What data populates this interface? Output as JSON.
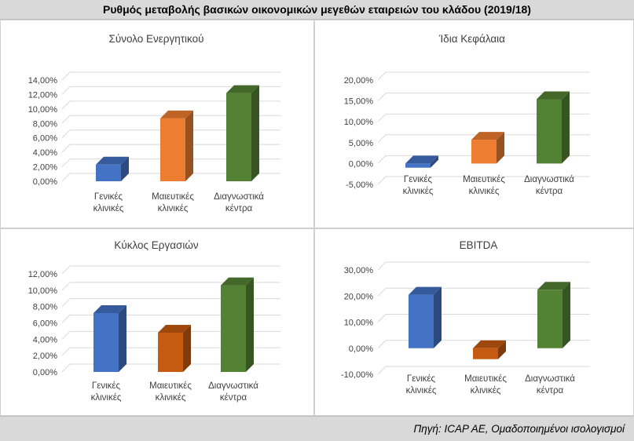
{
  "header": {
    "title": "Ρυθμός μεταβολής βασικών οικονομικών μεγεθών εταιρειών του κλάδου (2019/18)"
  },
  "footer": {
    "source": "Πηγή: ICAP AE, Ομαδοποιημένοι ισολογισμοί"
  },
  "chart_data": [
    {
      "type": "bar",
      "title": "Σύνολο Ενεργητικού",
      "categories": [
        "Γενικές κλινικές",
        "Μαιευτικές κλινικές",
        "Διαγνωστικά κέντρα"
      ],
      "values": [
        2.3,
        8.7,
        12.2
      ],
      "ylim": [
        0,
        14
      ],
      "ytick_step": 2,
      "yticks": [
        "0,00%",
        "2,00%",
        "4,00%",
        "6,00%",
        "8,00%",
        "10,00%",
        "12,00%",
        "14,00%"
      ],
      "colors": [
        "#4472c4",
        "#ed7d31",
        "#548235"
      ]
    },
    {
      "type": "bar",
      "title": "Ίδια Κεφάλαια",
      "categories": [
        "Γενικές κλινικές",
        "Μαιευτικές κλινικές",
        "Διαγνωστικά κέντρα"
      ],
      "values": [
        -1.0,
        5.7,
        15.4
      ],
      "ylim": [
        -5,
        20
      ],
      "ytick_step": 5,
      "yticks": [
        "-5,00%",
        "0,00%",
        "5,00%",
        "10,00%",
        "15,00%",
        "20,00%"
      ],
      "colors": [
        "#4472c4",
        "#ed7d31",
        "#548235"
      ]
    },
    {
      "type": "bar",
      "title": "Κύκλος Εργασιών",
      "categories": [
        "Γενικές κλινικές",
        "Μαιευτικές κλινικές",
        "Διαγνωστικά κέντρα"
      ],
      "values": [
        7.2,
        4.8,
        10.6
      ],
      "ylim": [
        0,
        12
      ],
      "ytick_step": 2,
      "yticks": [
        "0,00%",
        "2,00%",
        "4,00%",
        "6,00%",
        "8,00%",
        "10,00%",
        "12,00%"
      ],
      "colors": [
        "#4472c4",
        "#c55a11",
        "#548235"
      ]
    },
    {
      "type": "bar",
      "title": "EBITDA",
      "categories": [
        "Γενικές κλινικές",
        "Μαιευτικές κλινικές",
        "Διαγνωστικά κέντρα"
      ],
      "values": [
        20.5,
        -4.2,
        22.4
      ],
      "ylim": [
        -10,
        30
      ],
      "ytick_step": 10,
      "yticks": [
        "-10,00%",
        "0,00%",
        "10,00%",
        "20,00%",
        "30,00%"
      ],
      "colors": [
        "#4472c4",
        "#c55a11",
        "#548235"
      ]
    }
  ]
}
